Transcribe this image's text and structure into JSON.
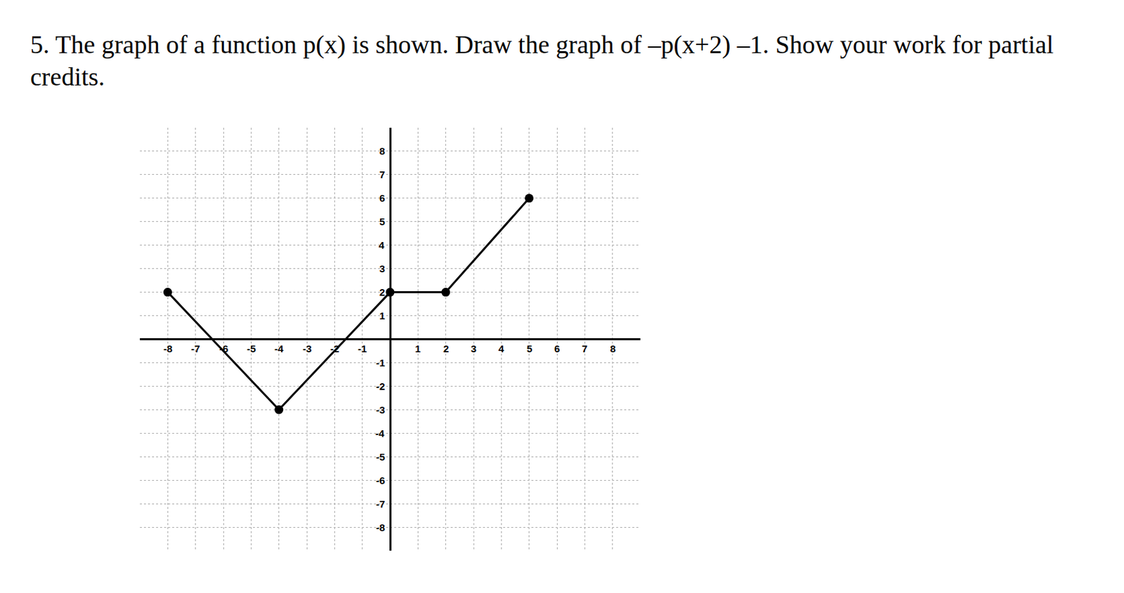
{
  "question": "5. The graph of a function p(x) is shown. Draw the graph of –p(x+2) –1. Show your work for partial credits.",
  "chart_data": {
    "type": "line",
    "x": [
      -8,
      -4,
      0,
      2,
      5
    ],
    "values": [
      2,
      -3,
      2,
      2,
      6
    ],
    "color": "#000000",
    "marker": "circle",
    "line_style": "solid",
    "xlim": [
      -9,
      9
    ],
    "ylim": [
      -9,
      9
    ],
    "xticks": [
      -8,
      -7,
      -6,
      -5,
      -4,
      -3,
      -2,
      -1,
      1,
      2,
      3,
      4,
      5,
      6,
      7,
      8
    ],
    "yticks": [
      -8,
      -7,
      -6,
      -5,
      -4,
      -3,
      -2,
      -1,
      1,
      2,
      3,
      4,
      5,
      6,
      7,
      8
    ],
    "grid": true
  }
}
